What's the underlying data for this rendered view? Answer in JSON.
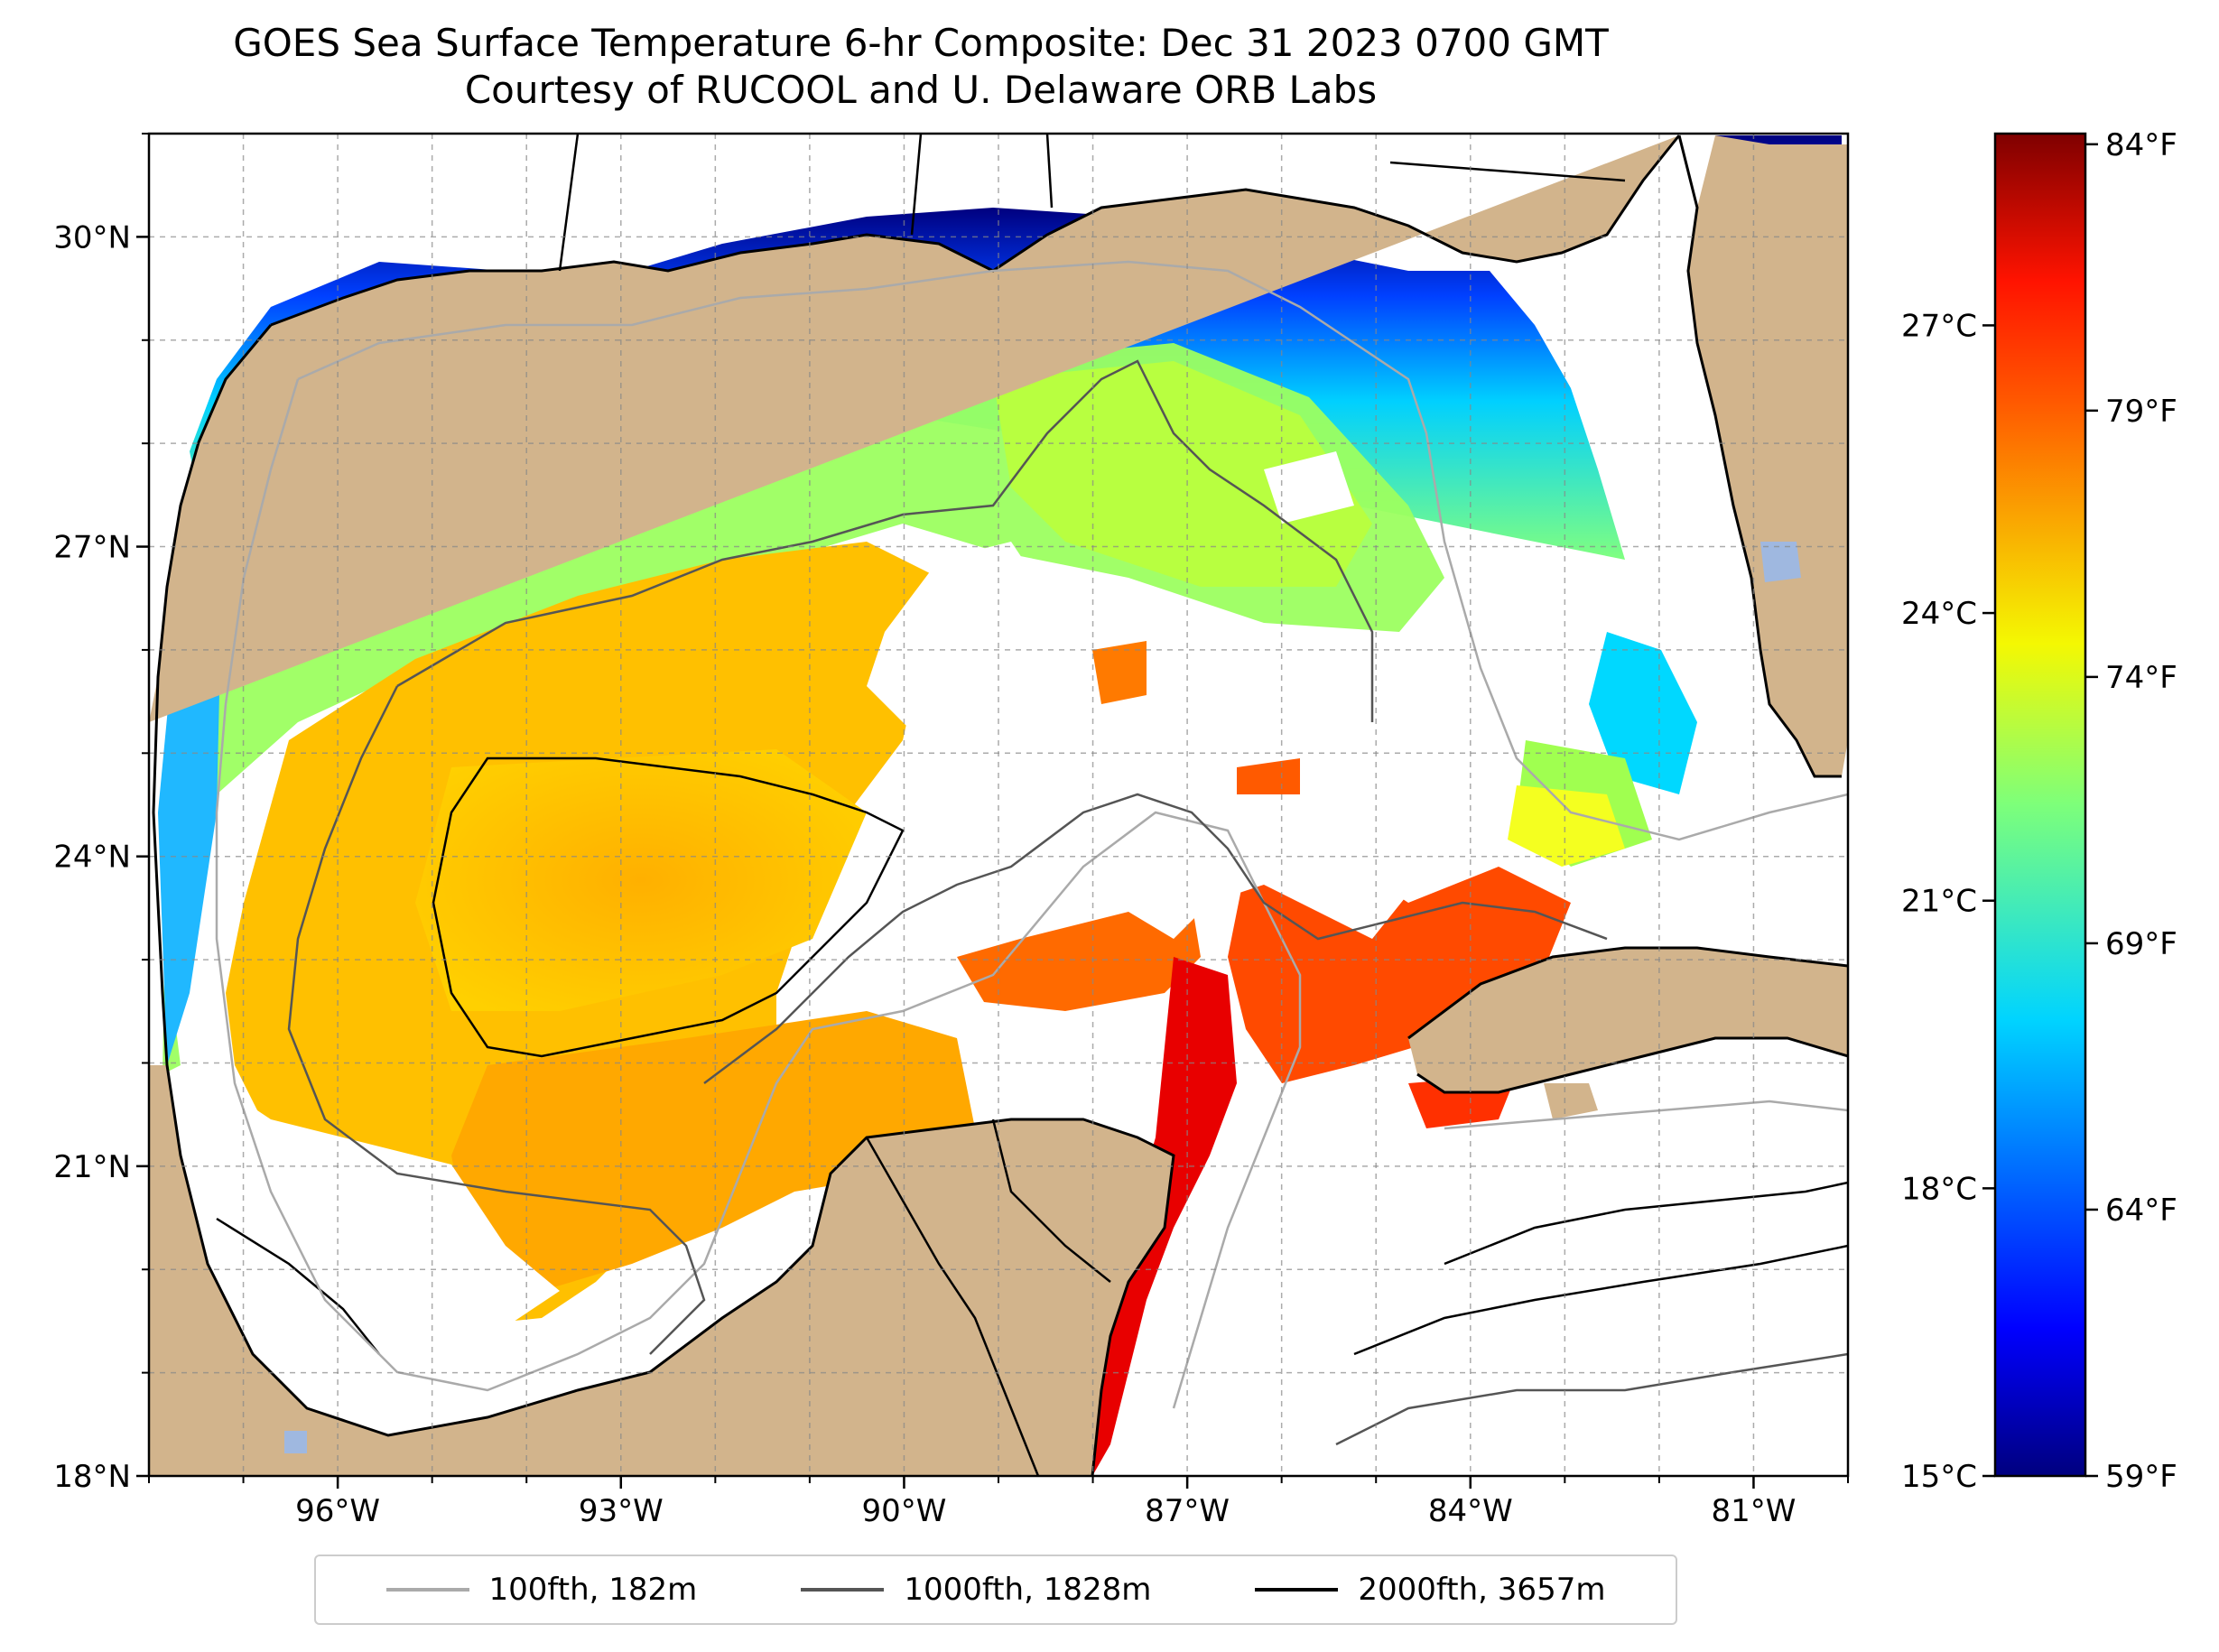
{
  "title": {
    "line1": "GOES Sea Surface Temperature 6-hr Composite: Dec 31 2023 0700 GMT",
    "line2": "Courtesy of RUCOOL and U. Delaware ORB Labs"
  },
  "map": {
    "region": "Gulf of Mexico",
    "lon_range": [
      -98,
      -80
    ],
    "lat_range": [
      18,
      31
    ],
    "lon_ticks": [
      {
        "value": -96,
        "label": "96°W"
      },
      {
        "value": -93,
        "label": "93°W"
      },
      {
        "value": -90,
        "label": "90°W"
      },
      {
        "value": -87,
        "label": "87°W"
      },
      {
        "value": -84,
        "label": "84°W"
      },
      {
        "value": -81,
        "label": "81°W"
      }
    ],
    "lat_ticks": [
      {
        "value": 18,
        "label": "18°N"
      },
      {
        "value": 21,
        "label": "21°N"
      },
      {
        "value": 24,
        "label": "24°N"
      },
      {
        "value": 27,
        "label": "27°N"
      },
      {
        "value": 30,
        "label": "30°N"
      }
    ],
    "gridlines": true,
    "land_color": "#d2b48c",
    "missing_data_color": "#ffffff",
    "lake_color": "#9fb8e0"
  },
  "colorbar": {
    "colormap": "jet",
    "range_c": [
      15,
      29
    ],
    "celsius_ticks": [
      {
        "value": 15,
        "label": "15°C"
      },
      {
        "value": 18,
        "label": "18°C"
      },
      {
        "value": 21,
        "label": "21°C"
      },
      {
        "value": 24,
        "label": "24°C"
      },
      {
        "value": 27,
        "label": "27°C"
      }
    ],
    "fahrenheit_ticks": [
      {
        "value": 59,
        "label": "59°F"
      },
      {
        "value": 64,
        "label": "64°F"
      },
      {
        "value": 69,
        "label": "69°F"
      },
      {
        "value": 74,
        "label": "74°F"
      },
      {
        "value": 79,
        "label": "79°F"
      },
      {
        "value": 84,
        "label": "84°F"
      }
    ]
  },
  "legend": {
    "placement": "bottom-center",
    "entries": [
      {
        "label": "100fth, 182m",
        "color": "#aaaaaa"
      },
      {
        "label": "1000fth, 1828m",
        "color": "#555555"
      },
      {
        "label": "2000fth, 3657m",
        "color": "#000000"
      }
    ]
  }
}
